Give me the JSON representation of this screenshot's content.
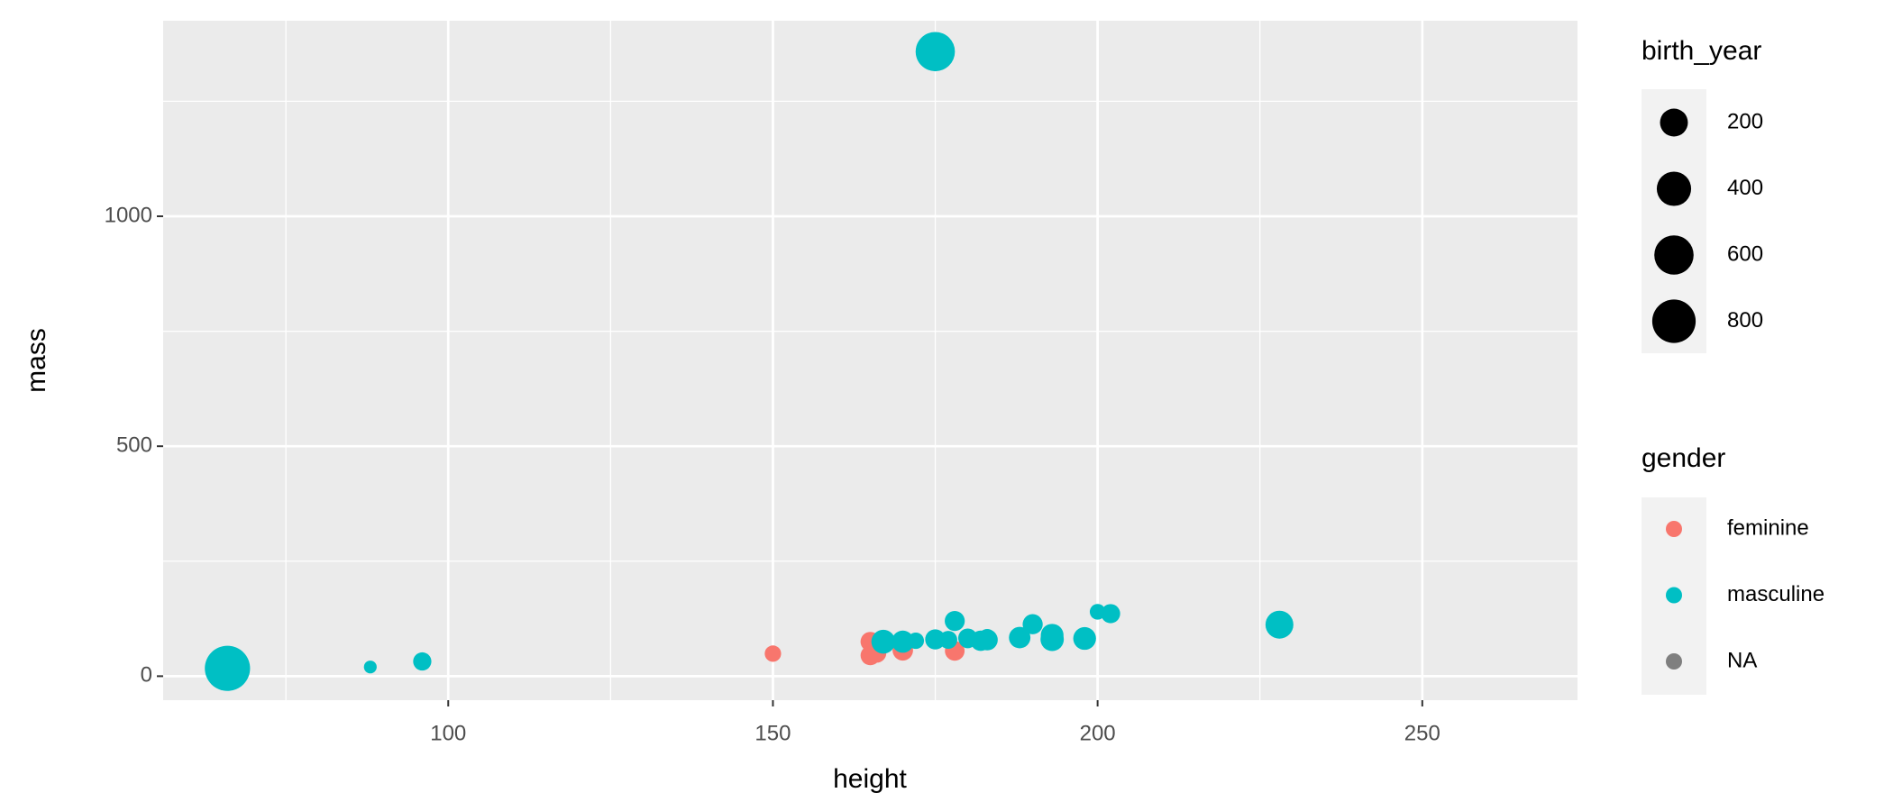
{
  "chart_data": {
    "type": "scatter",
    "x_label": "height",
    "y_label": "mass",
    "xlim": [
      56.1,
      273.9
    ],
    "ylim": [
      -52.15,
      1425.15
    ],
    "xticks": [
      100,
      150,
      200,
      250
    ],
    "yticks": [
      0,
      500,
      1000
    ],
    "xminor": [
      75,
      125,
      175,
      225
    ],
    "yminor": [
      250,
      750,
      1250
    ],
    "grid": true,
    "size_lim": [
      8,
      896
    ],
    "size_legend": {
      "title": "birth_year",
      "values": [
        200,
        400,
        600,
        800
      ]
    },
    "color_legend_title": "gender",
    "series": [
      {
        "name": "feminine",
        "color": "#F8766D",
        "x": [
          150,
          165,
          165,
          170,
          166,
          178
        ],
        "y": [
          49,
          75,
          45,
          56.2,
          50,
          55
        ],
        "size": [
          19,
          47,
          46,
          58,
          40,
          48
        ]
      },
      {
        "name": "masculine",
        "color": "#00BFC4",
        "x": [
          172,
          167,
          96,
          202,
          178,
          183,
          182,
          188,
          228,
          180,
          175,
          170,
          66,
          170,
          183,
          200,
          177,
          180,
          88,
          193,
          188,
          198,
          193,
          183,
          175,
          188,
          190
        ],
        "y": [
          77,
          75,
          32,
          136,
          120,
          84,
          77,
          84,
          112,
          80,
          1358,
          77,
          17,
          75,
          78.2,
          140,
          79,
          83,
          20,
          89,
          84,
          82,
          80,
          79,
          80,
          80,
          113
        ],
        "size": [
          19,
          112,
          33,
          41.9,
          52,
          24,
          57,
          41.9,
          200,
          29,
          600,
          21,
          896,
          82,
          31.5,
          15,
          31,
          41,
          8,
          92,
          72,
          92,
          102,
          66,
          54,
          22,
          53
        ]
      },
      {
        "name": "NA",
        "color": "#7F7F7F",
        "x": [],
        "y": [],
        "size": []
      }
    ]
  }
}
